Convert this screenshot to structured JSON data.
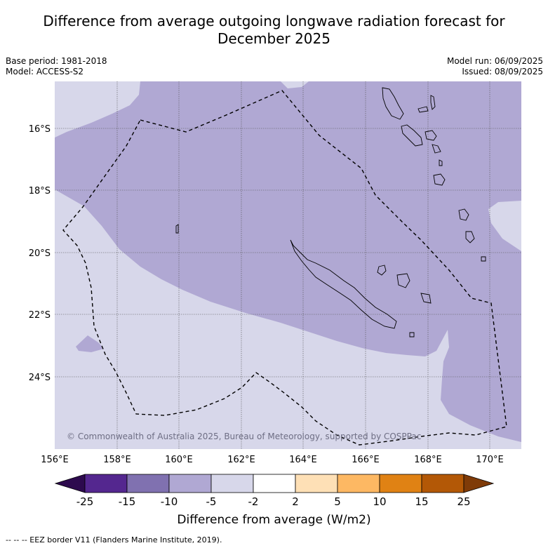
{
  "title_line1": "Difference from average outgoing longwave radiation forecast for",
  "title_line2": "December 2025",
  "base_period": "Base period: 1981-2018",
  "model": "Model: ACCESS-S2",
  "model_run": "Model run: 06/09/2025",
  "issued": "Issued: 08/09/2025",
  "copyright": "© Commonwealth of Australia 2025, Bureau of Meteorology, supported by COSPPac",
  "lat_labels": [
    "16°S",
    "18°S",
    "20°S",
    "22°S",
    "24°S"
  ],
  "lon_labels": [
    "156°E",
    "158°E",
    "160°E",
    "162°E",
    "164°E",
    "166°E",
    "168°E",
    "170°E"
  ],
  "colorbar": {
    "title": "Difference from average (W/m2)",
    "ticks": [
      "-25",
      "-15",
      "-10",
      "-5",
      "-2",
      "2",
      "5",
      "10",
      "15",
      "25"
    ],
    "colors": [
      "#2d0a4e",
      "#54278f",
      "#8071b0",
      "#b0a8d3",
      "#d7d7ea",
      "#ffffff",
      "#fee0b6",
      "#fdb863",
      "#e08214",
      "#b35806",
      "#7f3b08"
    ]
  },
  "footer": "--  --  -- EEZ border V11 (Flanders Marine Institute, 2019).",
  "colors": {
    "anomaly_minus5_to_minus10": "#b0a8d3",
    "anomaly_minus2_to_minus5": "#d7d7ea",
    "coastline": "#000000",
    "eez_border": "#000000"
  }
}
